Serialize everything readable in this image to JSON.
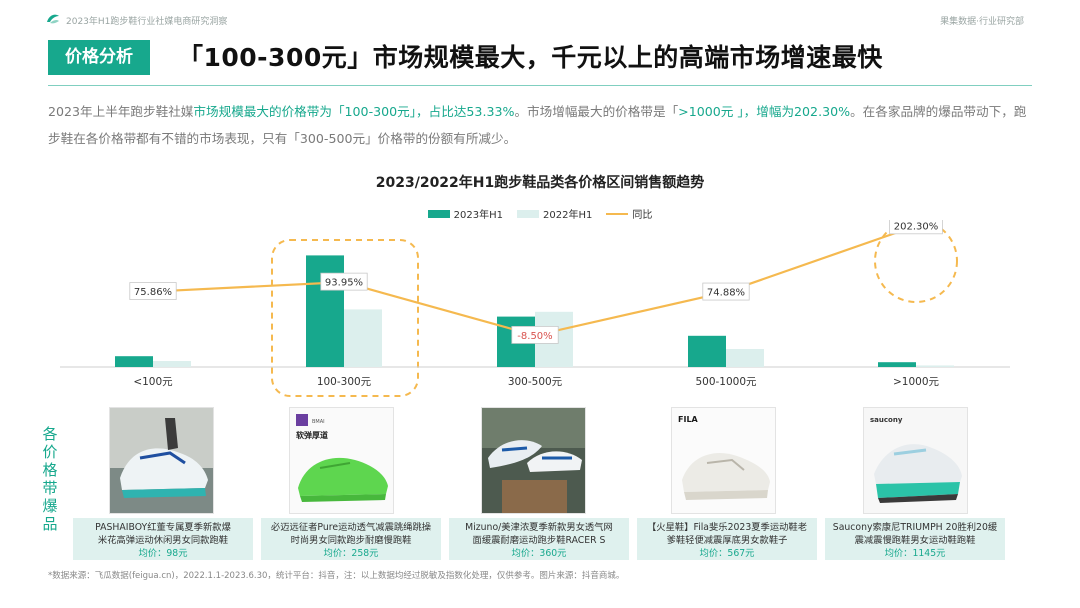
{
  "header": {
    "left_text": "2023年H1跑步鞋行业社媒电商研究洞察",
    "right_text": "果集数据·行业研究部"
  },
  "section_badge": "价格分析",
  "headline": "「100-300元」市场规模最大，千元以上的高端市场增速最快",
  "summary": {
    "p1": "2023年上半年跑步鞋社媒",
    "p2": "市场规模最大的价格带为「100-300元」，占比达53.33%",
    "p3": "。市场增幅最大的价格带是「",
    "p4": ">1000元 」",
    "p5": "，增幅为202.30%",
    "p6": "。在各家品牌的爆品带动下，跑步鞋在各价格带都有不错的市场表现，只有「300-500元」价格带的份额有所减少。"
  },
  "chart_data": {
    "type": "bar",
    "title": "2023/2022年H1跑步鞋品类各价格区间销售额趋势",
    "categories": [
      "<100元",
      "100-300元",
      "300-500元",
      "500-1000元",
      ">1000元"
    ],
    "series": [
      {
        "name": "2023年H1",
        "values": [
          9,
          93,
          42,
          26,
          4
        ]
      },
      {
        "name": "2022年H1",
        "values": [
          5,
          48,
          46,
          15,
          1.3
        ]
      }
    ],
    "line": {
      "name": "同比",
      "values": [
        75.86,
        93.95,
        -8.5,
        74.88,
        202.3
      ],
      "labels": [
        "75.86%",
        "93.95%",
        "-8.50%",
        "74.88%",
        "202.30%"
      ]
    },
    "colors": {
      "series1": "#17a88d",
      "series2": "#dcefed",
      "line": "#f5b94f",
      "negative": "#d9534f"
    },
    "grid": false,
    "legend_position": "top-center",
    "highlighted_categories": [
      "100-300元",
      ">1000元"
    ]
  },
  "side_label": "各价格带爆品",
  "products": [
    {
      "name_line1": "PASHAIBOY红董专属夏季新款爆",
      "name_line2": "米花高弹运动休闲男女同款跑鞋",
      "price": "均价：98元",
      "icon": "running-shoe-image"
    },
    {
      "name_line1": "必迈远征者Pure运动透气减震跳绳跳操",
      "name_line2": "时尚男女同款跑步耐磨慢跑鞋",
      "price": "均价：258元",
      "badge": "软弹厚道",
      "icon": "green-shoe-image"
    },
    {
      "name_line1": "Mizuno/美津浓夏季新款男女透气网",
      "name_line2": "面缓震耐磨运动跑步鞋RACER S",
      "price": "均价：360元",
      "icon": "mizuno-shoe-image"
    },
    {
      "name_line1": "【火星鞋】Fila斐乐2023夏季运动鞋老",
      "name_line2": "爹鞋轻便减震厚底男女款鞋子",
      "price": "均价：567元",
      "brand": "FILA",
      "icon": "fila-shoe-image"
    },
    {
      "name_line1": "Saucony索康尼TRIUMPH 20胜利20缓",
      "name_line2": "震减震慢跑鞋男女运动鞋跑鞋",
      "price": "均价：1145元",
      "brand": "saucony",
      "icon": "saucony-shoe-image"
    }
  ],
  "footnote": "*数据来源：飞瓜数据(feigua.cn)，2022.1.1-2023.6.30，统计平台：抖音，注：以上数据均经过脱敏及指数化处理，仅供参考。图片来源：抖音商城。"
}
